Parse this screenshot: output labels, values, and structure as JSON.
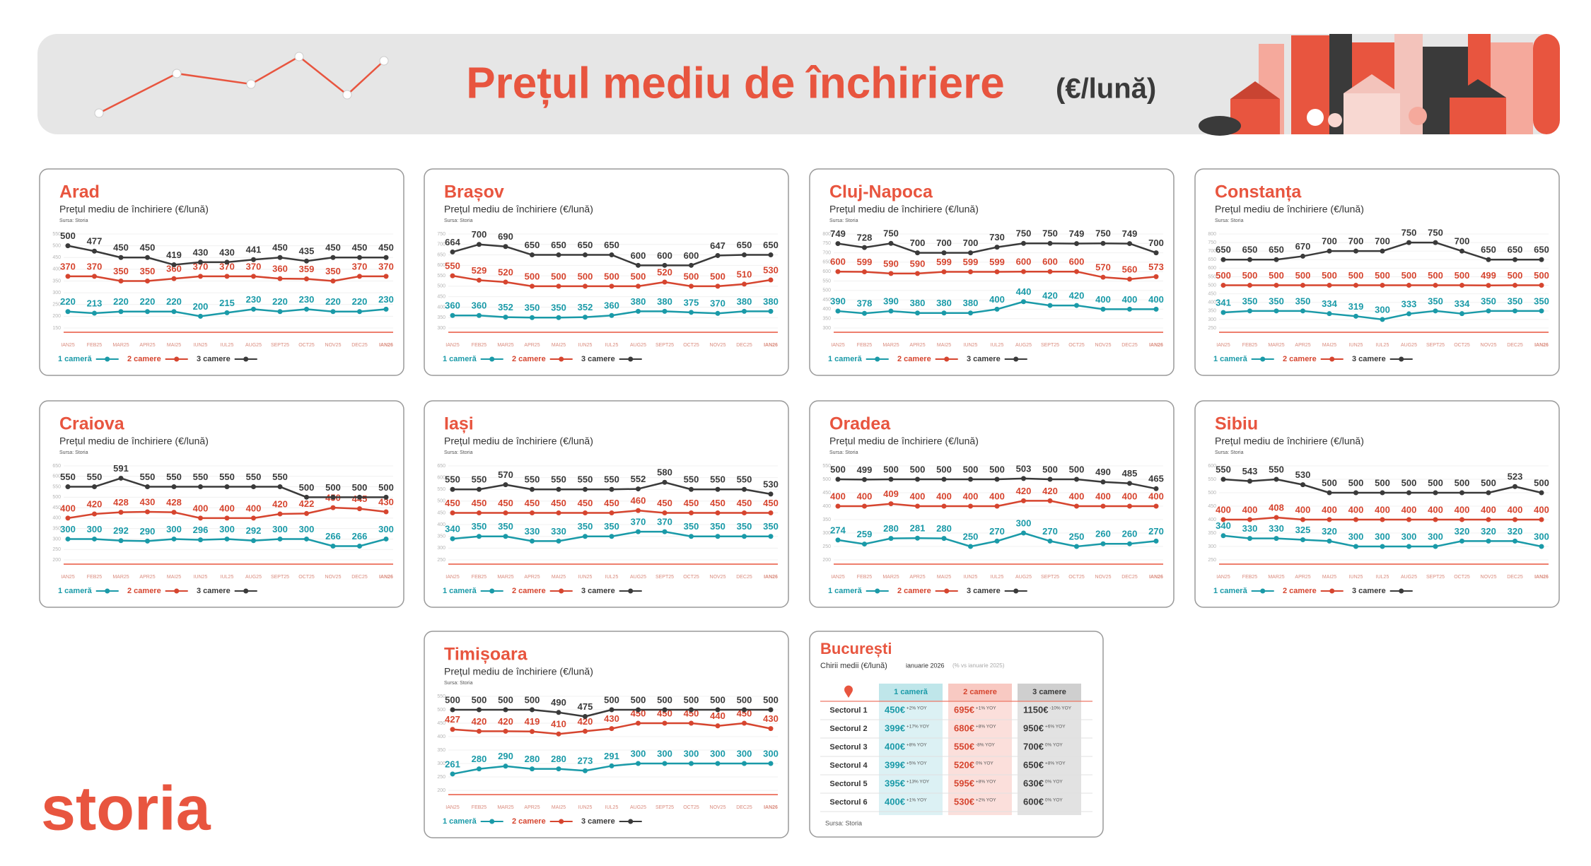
{
  "header": {
    "title": "Prețul mediu de închiriere",
    "unit": "(€/lună)"
  },
  "logo": {
    "text": "storia"
  },
  "chart_data": [
    {
      "type": "line",
      "title": "Arad",
      "subtitle": "Prețul mediu de închiriere (€/lună)",
      "source": "Sursa: Storia",
      "categories": [
        "IAN25",
        "FEB25",
        "MAR25",
        "APR25",
        "MAI25",
        "IUN25",
        "IUL25",
        "AUG25",
        "SEPT25",
        "OCT25",
        "NOV25",
        "DEC25",
        "IAN26"
      ],
      "series": [
        {
          "name": "1 cameră",
          "color": "#1a9aa8",
          "values": [
            220,
            213,
            220,
            220,
            220,
            200,
            215,
            230,
            220,
            230,
            220,
            220,
            230
          ]
        },
        {
          "name": "2 camere",
          "color": "#d6452f",
          "values": [
            370,
            370,
            350,
            350,
            360,
            370,
            370,
            370,
            360,
            359,
            350,
            370,
            370
          ]
        },
        {
          "name": "3 camere",
          "color": "#3a3a3a",
          "values": [
            500,
            477,
            450,
            450,
            419,
            430,
            430,
            441,
            450,
            435,
            450,
            450,
            450
          ]
        }
      ],
      "ylim": [
        150,
        550
      ],
      "yticks": [
        150,
        200,
        250,
        300,
        350,
        400,
        450,
        500,
        550
      ],
      "grid": true
    },
    {
      "type": "line",
      "title": "Brașov",
      "subtitle": "Prețul mediu de închiriere (€/lună)",
      "source": "Sursa: Storia",
      "categories": [
        "IAN25",
        "FEB25",
        "MAR25",
        "APR25",
        "MAI25",
        "IUN25",
        "IUL25",
        "AUG25",
        "SEPT25",
        "OCT25",
        "NOV25",
        "DEC25",
        "IAN26"
      ],
      "series": [
        {
          "name": "1 cameră",
          "color": "#1a9aa8",
          "values": [
            360,
            360,
            352,
            350,
            350,
            352,
            360,
            380,
            380,
            375,
            370,
            380,
            380
          ]
        },
        {
          "name": "2 camere",
          "color": "#d6452f",
          "values": [
            550,
            529,
            520,
            500,
            500,
            500,
            500,
            500,
            520,
            500,
            500,
            510,
            530
          ]
        },
        {
          "name": "3 camere",
          "color": "#3a3a3a",
          "values": [
            664,
            700,
            690,
            650,
            650,
            650,
            650,
            600,
            600,
            600,
            647,
            650,
            650
          ]
        }
      ],
      "ylim": [
        300,
        750
      ],
      "yticks": [
        300,
        350,
        400,
        450,
        500,
        550,
        600,
        650,
        700,
        750
      ],
      "grid": true
    },
    {
      "type": "line",
      "title": "Cluj-Napoca",
      "subtitle": "Prețul mediu de închiriere (€/lună)",
      "source": "Sursa: Storia",
      "categories": [
        "IAN25",
        "FEB25",
        "MAR25",
        "APR25",
        "MAI25",
        "IUN25",
        "IUL25",
        "AUG25",
        "SEPT25",
        "OCT25",
        "NOV25",
        "DEC25",
        "IAN26"
      ],
      "series": [
        {
          "name": "1 cameră",
          "color": "#1a9aa8",
          "values": [
            390,
            378,
            390,
            380,
            380,
            380,
            400,
            440,
            420,
            420,
            400,
            400,
            400
          ]
        },
        {
          "name": "2 camere",
          "color": "#d6452f",
          "values": [
            600,
            599,
            590,
            590,
            599,
            599,
            599,
            600,
            600,
            600,
            570,
            560,
            573
          ]
        },
        {
          "name": "3 camere",
          "color": "#3a3a3a",
          "values": [
            749,
            728,
            750,
            700,
            700,
            700,
            730,
            750,
            750,
            749,
            750,
            749,
            700
          ]
        }
      ],
      "ylim": [
        300,
        800
      ],
      "yticks": [
        300,
        350,
        400,
        450,
        500,
        550,
        600,
        650,
        700,
        750,
        800
      ],
      "grid": true
    },
    {
      "type": "line",
      "title": "Constanța",
      "subtitle": "Prețul mediu de închiriere (€/lună)",
      "source": "Sursa: Storia",
      "categories": [
        "IAN25",
        "FEB25",
        "MAR25",
        "APR25",
        "MAI25",
        "IUN25",
        "IUL25",
        "AUG25",
        "SEPT25",
        "OCT25",
        "NOV25",
        "DEC25",
        "IAN26"
      ],
      "series": [
        {
          "name": "1 cameră",
          "color": "#1a9aa8",
          "values": [
            341,
            350,
            350,
            350,
            334,
            319,
            300,
            333,
            350,
            334,
            350,
            350,
            350
          ]
        },
        {
          "name": "2 camere",
          "color": "#d6452f",
          "values": [
            500,
            500,
            500,
            500,
            500,
            500,
            500,
            500,
            500,
            500,
            499,
            500,
            500
          ]
        },
        {
          "name": "3 camere",
          "color": "#3a3a3a",
          "values": [
            650,
            650,
            650,
            670,
            700,
            700,
            700,
            750,
            750,
            700,
            650,
            650,
            650
          ]
        }
      ],
      "ylim": [
        250,
        800
      ],
      "yticks": [
        250,
        300,
        350,
        400,
        450,
        500,
        550,
        600,
        650,
        700,
        750,
        800
      ],
      "grid": true
    },
    {
      "type": "line",
      "title": "Craiova",
      "subtitle": "Prețul mediu de închiriere (€/lună)",
      "source": "Sursa: Storia",
      "categories": [
        "IAN25",
        "FEB25",
        "MAR25",
        "APR25",
        "MAI25",
        "IUN25",
        "IUL25",
        "AUG25",
        "SEPT25",
        "OCT25",
        "NOV25",
        "DEC25",
        "IAN26"
      ],
      "series": [
        {
          "name": "1 cameră",
          "color": "#1a9aa8",
          "values": [
            300,
            300,
            292,
            290,
            300,
            296,
            300,
            292,
            300,
            300,
            266,
            266,
            300
          ]
        },
        {
          "name": "2 camere",
          "color": "#d6452f",
          "values": [
            400,
            420,
            428,
            430,
            428,
            400,
            400,
            400,
            420,
            422,
            450,
            445,
            430
          ]
        },
        {
          "name": "3 camere",
          "color": "#3a3a3a",
          "values": [
            550,
            550,
            591,
            550,
            550,
            550,
            550,
            550,
            550,
            500,
            500,
            500,
            500
          ]
        }
      ],
      "ylim": [
        200,
        650
      ],
      "yticks": [
        200,
        250,
        300,
        350,
        400,
        450,
        500,
        550,
        600,
        650
      ],
      "grid": true
    },
    {
      "type": "line",
      "title": "Iași",
      "subtitle": "Prețul mediu de închiriere (€/lună)",
      "source": "Sursa: Storia",
      "categories": [
        "IAN25",
        "FEB25",
        "MAR25",
        "APR25",
        "MAI25",
        "IUN25",
        "IUL25",
        "AUG25",
        "SEPT25",
        "OCT25",
        "NOV25",
        "DEC25",
        "IAN26"
      ],
      "series": [
        {
          "name": "1 cameră",
          "color": "#1a9aa8",
          "values": [
            340,
            350,
            350,
            330,
            330,
            350,
            350,
            370,
            370,
            350,
            350,
            350,
            350
          ]
        },
        {
          "name": "2 camere",
          "color": "#d6452f",
          "values": [
            450,
            450,
            450,
            450,
            450,
            450,
            450,
            460,
            450,
            450,
            450,
            450,
            450
          ]
        },
        {
          "name": "3 camere",
          "color": "#3a3a3a",
          "values": [
            550,
            550,
            570,
            550,
            550,
            550,
            550,
            552,
            580,
            550,
            550,
            550,
            530
          ]
        }
      ],
      "ylim": [
        250,
        650
      ],
      "yticks": [
        250,
        300,
        350,
        400,
        450,
        500,
        550,
        600,
        650
      ],
      "grid": true
    },
    {
      "type": "line",
      "title": "Oradea",
      "subtitle": "Prețul mediu de închiriere (€/lună)",
      "source": "Sursa: Storia",
      "categories": [
        "IAN25",
        "FEB25",
        "MAR25",
        "APR25",
        "MAI25",
        "IUN25",
        "IUL25",
        "AUG25",
        "SEPT25",
        "OCT25",
        "NOV25",
        "DEC25",
        "IAN26"
      ],
      "series": [
        {
          "name": "1 cameră",
          "color": "#1a9aa8",
          "values": [
            274,
            259,
            280,
            281,
            280,
            250,
            270,
            300,
            270,
            250,
            260,
            260,
            270
          ]
        },
        {
          "name": "2 camere",
          "color": "#d6452f",
          "values": [
            400,
            400,
            409,
            400,
            400,
            400,
            400,
            420,
            420,
            400,
            400,
            400,
            400
          ]
        },
        {
          "name": "3 camere",
          "color": "#3a3a3a",
          "values": [
            500,
            499,
            500,
            500,
            500,
            500,
            500,
            503,
            500,
            500,
            490,
            485,
            465
          ]
        }
      ],
      "ylim": [
        200,
        550
      ],
      "yticks": [
        200,
        250,
        300,
        350,
        400,
        450,
        500,
        550
      ],
      "grid": true
    },
    {
      "type": "line",
      "title": "Sibiu",
      "subtitle": "Prețul mediu de închiriere (€/lună)",
      "source": "Sursa: Storia",
      "categories": [
        "IAN25",
        "FEB25",
        "MAR25",
        "APR25",
        "MAI25",
        "IUN25",
        "IUL25",
        "AUG25",
        "SEPT25",
        "OCT25",
        "NOV25",
        "DEC25",
        "IAN26"
      ],
      "series": [
        {
          "name": "1 cameră",
          "color": "#1a9aa8",
          "values": [
            340,
            330,
            330,
            325,
            320,
            300,
            300,
            300,
            300,
            320,
            320,
            320,
            300
          ]
        },
        {
          "name": "2 camere",
          "color": "#d6452f",
          "values": [
            400,
            400,
            408,
            400,
            400,
            400,
            400,
            400,
            400,
            400,
            400,
            400,
            400
          ]
        },
        {
          "name": "3 camere",
          "color": "#3a3a3a",
          "values": [
            550,
            543,
            550,
            530,
            500,
            500,
            500,
            500,
            500,
            500,
            500,
            523,
            500
          ]
        }
      ],
      "ylim": [
        250,
        600
      ],
      "yticks": [
        250,
        300,
        350,
        400,
        450,
        500,
        550,
        600
      ],
      "grid": true
    },
    {
      "type": "line",
      "title": "Timișoara",
      "subtitle": "Prețul mediu de închiriere (€/lună)",
      "source": "Sursa: Storia",
      "categories": [
        "IAN25",
        "FEB25",
        "MAR25",
        "APR25",
        "MAI25",
        "IUN25",
        "IUL25",
        "AUG25",
        "SEPT25",
        "OCT25",
        "NOV25",
        "DEC25",
        "IAN26"
      ],
      "series": [
        {
          "name": "1 cameră",
          "color": "#1a9aa8",
          "values": [
            261,
            280,
            290,
            280,
            280,
            273,
            291,
            300,
            300,
            300,
            300,
            300,
            300
          ]
        },
        {
          "name": "2 camere",
          "color": "#d6452f",
          "values": [
            427,
            420,
            420,
            419,
            410,
            420,
            430,
            450,
            450,
            450,
            440,
            450,
            430
          ]
        },
        {
          "name": "3 camere",
          "color": "#3a3a3a",
          "values": [
            500,
            500,
            500,
            500,
            490,
            475,
            500,
            500,
            500,
            500,
            500,
            500,
            500
          ]
        }
      ],
      "ylim": [
        200,
        550
      ],
      "yticks": [
        200,
        250,
        300,
        350,
        400,
        450,
        500,
        550
      ],
      "grid": true
    }
  ],
  "table": {
    "title": "București",
    "subtitle": "Chirii medii (€/lună)",
    "period": "ianuarie 2026",
    "note": "(% vs ianuarie 2025)",
    "columns": [
      "1 cameră",
      "2 camere",
      "3 camere"
    ],
    "rows": [
      {
        "label": "Sectorul 1",
        "cells": [
          {
            "value": "450€",
            "change": "+2% YOY"
          },
          {
            "value": "695€",
            "change": "+1% YOY"
          },
          {
            "value": "1150€",
            "change": "-10% YOY"
          }
        ]
      },
      {
        "label": "Sectorul 2",
        "cells": [
          {
            "value": "399€",
            "change": "+17% YOY"
          },
          {
            "value": "680€",
            "change": "+8% YOY"
          },
          {
            "value": "950€",
            "change": "+6% YOY"
          }
        ]
      },
      {
        "label": "Sectorul 3",
        "cells": [
          {
            "value": "400€",
            "change": "+8% YOY"
          },
          {
            "value": "550€",
            "change": "-8% YOY"
          },
          {
            "value": "700€",
            "change": "0% YOY"
          }
        ]
      },
      {
        "label": "Sectorul 4",
        "cells": [
          {
            "value": "399€",
            "change": "+5% YOY"
          },
          {
            "value": "520€",
            "change": "0% YOY"
          },
          {
            "value": "650€",
            "change": "+8% YOY"
          }
        ]
      },
      {
        "label": "Sectorul 5",
        "cells": [
          {
            "value": "395€",
            "change": "+13% YOY"
          },
          {
            "value": "595€",
            "change": "+8% YOY"
          },
          {
            "value": "630€",
            "change": "0% YOY"
          }
        ]
      },
      {
        "label": "Sectorul 6",
        "cells": [
          {
            "value": "400€",
            "change": "+1% YOY"
          },
          {
            "value": "530€",
            "change": "+2% YOY"
          },
          {
            "value": "600€",
            "change": "0% YOY"
          }
        ]
      }
    ],
    "source": "Sursa: Storia"
  }
}
